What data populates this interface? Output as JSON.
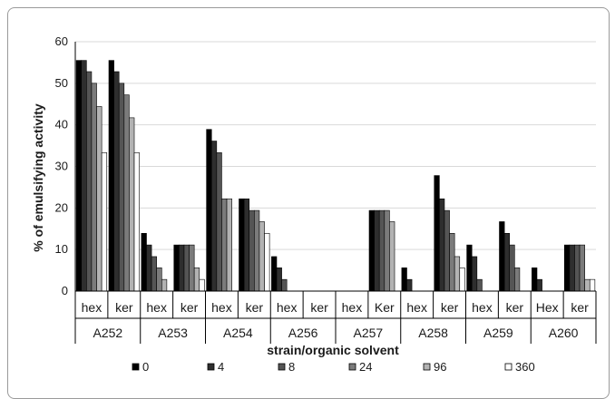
{
  "chart_data": {
    "type": "bar",
    "xlabel": "strain/organic solvent",
    "ylabel": "% of emulsifying activity",
    "ylim": [
      0,
      60
    ],
    "yticks": [
      0,
      10,
      20,
      30,
      40,
      50,
      60
    ],
    "grid": true,
    "legend_position": "bottom",
    "groups": [
      {
        "strain": "A252",
        "solvents": [
          "hex",
          "ker"
        ]
      },
      {
        "strain": "A253",
        "solvents": [
          "hex",
          "ker"
        ]
      },
      {
        "strain": "A254",
        "solvents": [
          "hex",
          "ker"
        ]
      },
      {
        "strain": "A256",
        "solvents": [
          "hex",
          "ker"
        ]
      },
      {
        "strain": "A257",
        "solvents": [
          "hex",
          "Ker"
        ]
      },
      {
        "strain": "A258",
        "solvents": [
          "hex",
          "ker"
        ]
      },
      {
        "strain": "A259",
        "solvents": [
          "hex",
          "ker"
        ]
      },
      {
        "strain": "A260",
        "solvents": [
          "Hex",
          "ker"
        ]
      }
    ],
    "series": [
      {
        "name": "0",
        "color": "#000000",
        "values": [
          55.5,
          55.5,
          13.9,
          11.1,
          38.9,
          22.2,
          8.3,
          0,
          0,
          19.4,
          5.6,
          27.8,
          11.1,
          16.7,
          5.6,
          11.1
        ]
      },
      {
        "name": "4",
        "color": "#2e2e2e",
        "values": [
          55.5,
          52.8,
          11.1,
          11.1,
          36.1,
          22.2,
          5.6,
          0,
          0,
          19.4,
          2.8,
          22.2,
          8.3,
          13.9,
          2.8,
          11.1
        ]
      },
      {
        "name": "8",
        "color": "#555555",
        "values": [
          52.8,
          50.0,
          8.3,
          11.1,
          33.3,
          19.4,
          2.8,
          0,
          0,
          19.4,
          0,
          19.4,
          2.8,
          11.1,
          0,
          11.1
        ]
      },
      {
        "name": "24",
        "color": "#7b7b7b",
        "values": [
          50.0,
          47.2,
          5.6,
          11.1,
          22.2,
          19.4,
          0,
          0,
          0,
          19.4,
          0,
          13.9,
          0,
          5.6,
          0,
          11.1
        ]
      },
      {
        "name": "96",
        "color": "#b3b3b3",
        "values": [
          44.4,
          41.7,
          2.8,
          5.6,
          22.2,
          16.7,
          0,
          0,
          0,
          16.7,
          0,
          8.3,
          0,
          0,
          0,
          2.8
        ]
      },
      {
        "name": "360",
        "color": "#ffffff",
        "values": [
          33.3,
          33.3,
          0,
          2.8,
          0,
          13.9,
          0,
          0,
          0,
          0,
          0,
          5.6,
          0,
          0,
          0,
          2.8
        ]
      }
    ]
  }
}
